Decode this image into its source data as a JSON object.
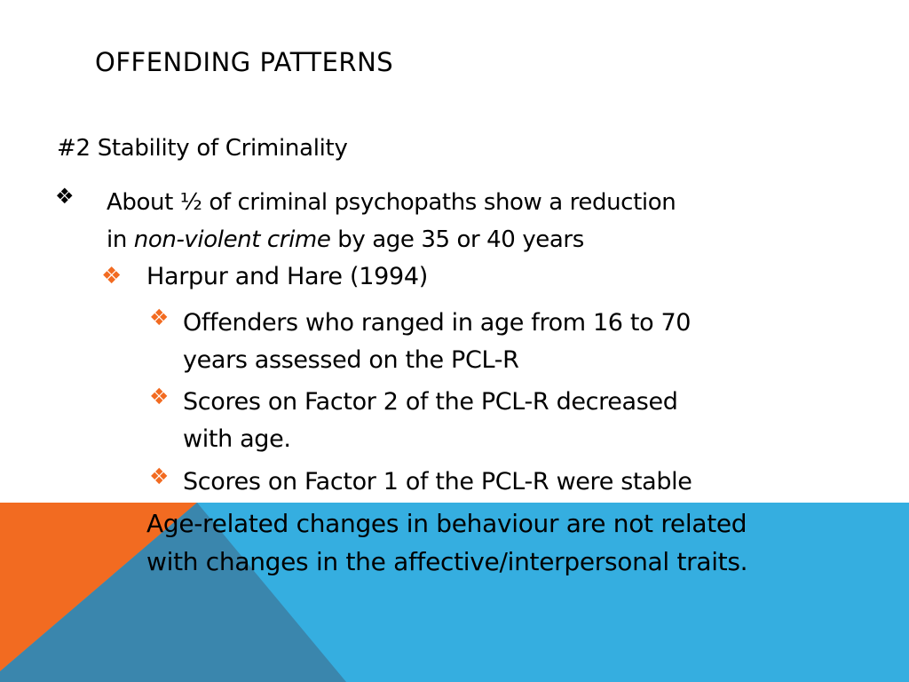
{
  "slide": {
    "title": "Offending Patterns",
    "heading": "#2 Stability of Criminality",
    "bullet1": {
      "line1": "About ½ of criminal psychopaths show a reduction",
      "line2_prefix": "in ",
      "line2_italic": "non-violent crime",
      "line2_suffix": " by age 35 or 40 years"
    },
    "bullet2": "Harpur and Hare (1994)",
    "sub_bullets": [
      {
        "line1": "Offenders who ranged in age from 16 to 70",
        "line2": "years assessed on the PCL-R"
      },
      {
        "line1": "Scores on Factor 2 of the PCL-R decreased",
        "line2": "with age."
      },
      {
        "line1": "Scores on Factor 1 of the PCL-R were stable"
      }
    ],
    "conclusion": {
      "line1": "Age-related changes in behaviour are not related",
      "line2": "with changes in the affective/interpersonal traits."
    }
  },
  "bullet_marker": "❖",
  "colors": {
    "accent_orange": "#f26b21",
    "accent_blue": "#35aee0",
    "dark_blue": "#3a86ad",
    "text": "#000000"
  }
}
